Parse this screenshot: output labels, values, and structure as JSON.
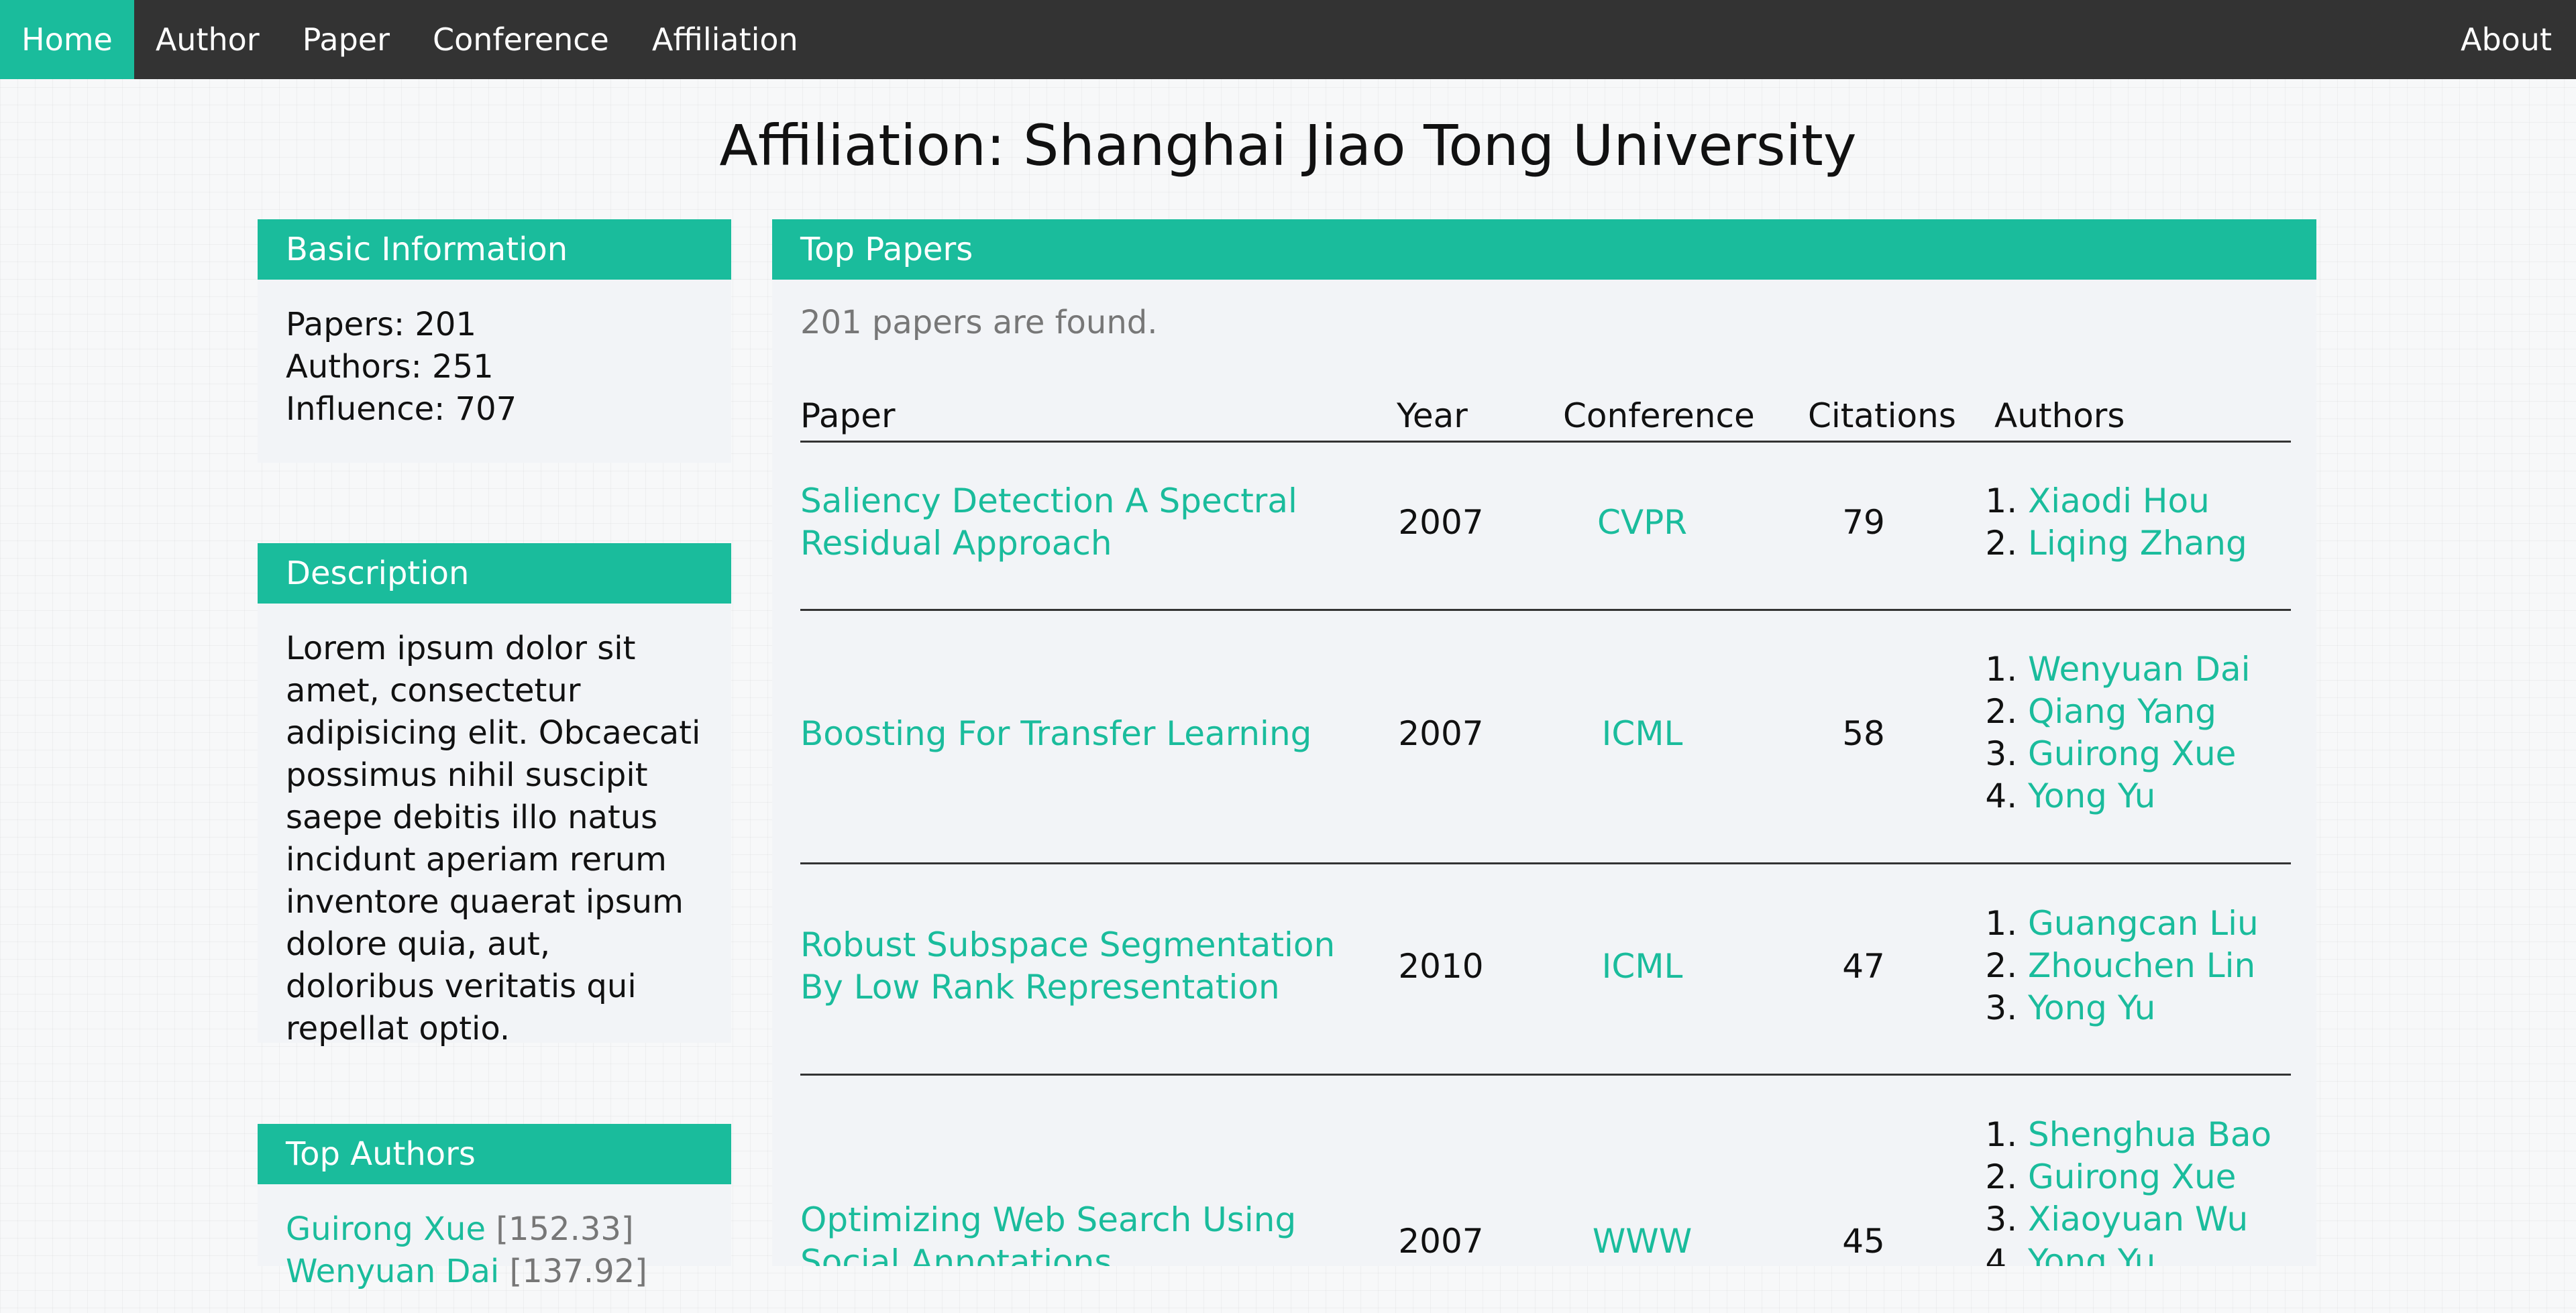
{
  "nav": {
    "items": [
      "Home",
      "Author",
      "Paper",
      "Conference",
      "Affiliation"
    ],
    "about": "About"
  },
  "page_title": "Affiliation: Shanghai Jiao Tong University",
  "basic_info": {
    "title": "Basic Information",
    "papers": "Papers: 201",
    "authors": "Authors: 251",
    "influence": "Influence: 707"
  },
  "description": {
    "title": "Description",
    "text": "Lorem ipsum dolor sit amet, consectetur adipisicing elit. Obcaecati possimus nihil suscipit saepe debitis illo natus incidunt aperiam rerum inventore quaerat ipsum dolore quia, aut, doloribus veritatis qui repellat optio."
  },
  "top_authors": {
    "title": "Top Authors",
    "items": [
      {
        "name": "Guirong Xue",
        "score": "[152.33]"
      },
      {
        "name": "Wenyuan Dai",
        "score": "[137.92]"
      }
    ]
  },
  "top_papers": {
    "title": "Top Papers",
    "found_text": "201 papers are found.",
    "columns": [
      "Paper",
      "Year",
      "Conference",
      "Citations",
      "Authors"
    ],
    "rows": [
      {
        "paper": "Saliency Detection A Spectral Residual Approach",
        "year": "2007",
        "conference": "CVPR",
        "citations": "79",
        "authors": [
          "Xiaodi Hou",
          "Liqing Zhang"
        ]
      },
      {
        "paper": "Boosting For Transfer Learning",
        "year": "2007",
        "conference": "ICML",
        "citations": "58",
        "authors": [
          "Wenyuan Dai",
          "Qiang Yang",
          "Guirong Xue",
          "Yong Yu"
        ]
      },
      {
        "paper": "Robust Subspace Segmentation By Low Rank Representation",
        "year": "2010",
        "conference": "ICML",
        "citations": "47",
        "authors": [
          "Guangcan Liu",
          "Zhouchen Lin",
          "Yong Yu"
        ]
      },
      {
        "paper": "Optimizing Web Search Using Social Annotations",
        "year": "2007",
        "conference": "WWW",
        "citations": "45",
        "authors": [
          "Shenghua Bao",
          "Guirong Xue",
          "Xiaoyuan Wu",
          "Yong Yu"
        ]
      }
    ]
  },
  "colors": {
    "accent": "#1abc9c",
    "navbar": "#333333",
    "panel": "#f2f4f7"
  }
}
